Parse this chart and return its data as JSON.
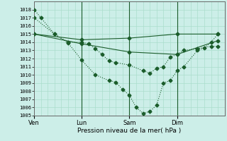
{
  "background_color": "#cceee8",
  "grid_color": "#aaddcc",
  "line_color": "#1a5c2a",
  "xlabel": "Pression niveau de la mer( hPa )",
  "ylim": [
    1005,
    1019
  ],
  "yticks": [
    1005,
    1006,
    1007,
    1008,
    1009,
    1010,
    1011,
    1012,
    1013,
    1014,
    1015,
    1016,
    1017,
    1018
  ],
  "xtick_labels": [
    "Ven",
    "Lun",
    "Sam",
    "Dim"
  ],
  "xtick_positions": [
    0,
    7,
    14,
    21
  ],
  "xlim": [
    0,
    28
  ],
  "series": [
    {
      "x": [
        0,
        1,
        3,
        5,
        7,
        8,
        9,
        10,
        11,
        12,
        14,
        16,
        17,
        18,
        19,
        20,
        21,
        22,
        24,
        26,
        27
      ],
      "y": [
        1018.0,
        1017.0,
        1015.0,
        1014.0,
        1014.0,
        1013.8,
        1013.2,
        1012.5,
        1011.7,
        1011.5,
        1011.2,
        1010.5,
        1010.2,
        1010.8,
        1011.0,
        1012.2,
        1012.5,
        1013.0,
        1013.2,
        1013.5,
        1013.5
      ],
      "style": "dotted",
      "marker": "D",
      "markersize": 2.5
    },
    {
      "x": [
        0,
        3,
        5,
        7,
        9,
        11,
        12,
        13,
        14,
        15,
        16,
        17,
        18,
        19,
        20,
        21,
        22,
        24,
        25,
        26,
        27
      ],
      "y": [
        1017.0,
        1015.0,
        1013.9,
        1011.8,
        1010.0,
        1009.3,
        1009.1,
        1008.2,
        1007.5,
        1006.0,
        1005.3,
        1005.5,
        1006.3,
        1009.0,
        1009.3,
        1010.5,
        1011.0,
        1013.0,
        1013.3,
        1014.0,
        1015.0
      ],
      "style": "dotted",
      "marker": "D",
      "markersize": 2.5
    },
    {
      "x": [
        0,
        7,
        14,
        21,
        27
      ],
      "y": [
        1015.0,
        1014.3,
        1014.5,
        1015.0,
        1015.0
      ],
      "style": "solid",
      "marker": "D",
      "markersize": 2.5
    },
    {
      "x": [
        0,
        7,
        14,
        21,
        27
      ],
      "y": [
        1015.0,
        1013.8,
        1012.8,
        1012.5,
        1014.2
      ],
      "style": "solid",
      "marker": "D",
      "markersize": 2.5
    }
  ],
  "vline_positions": [
    7,
    14,
    21
  ]
}
